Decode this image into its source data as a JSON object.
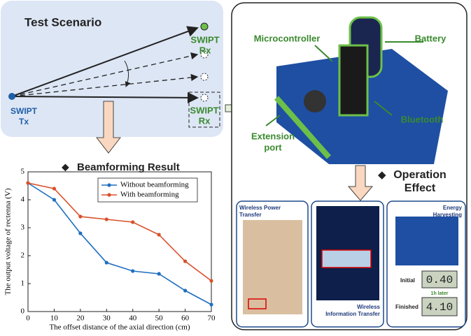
{
  "scenario": {
    "title": "Test Scenario",
    "rx1": [
      "SWIPT",
      "Rx"
    ],
    "rx2": [
      "SWIPT",
      "Rx"
    ],
    "tx": [
      "SWIPT",
      "Tx"
    ]
  },
  "hardware": {
    "labels": [
      "Microcontroller",
      "Battery",
      "Bluetooth"
    ],
    "extension": [
      "Extension",
      "port"
    ]
  },
  "operation": {
    "title": [
      "Operation",
      "Effect"
    ],
    "panels": {
      "power": [
        "Wireless Power",
        "Transfer"
      ],
      "info": [
        "Wireless",
        "Information Transfer"
      ],
      "energy": [
        "Energy",
        "Harvesting"
      ]
    },
    "initial": "Initial",
    "later": "1h later",
    "finished": "Finished",
    "reading1": "0.40",
    "reading2": "4.10"
  },
  "chart_data": {
    "type": "line",
    "title": "Beamforming Result",
    "xlabel": "The offset distance of the axial direction (cm)",
    "ylabel": "The output voltage of rectenna (V)",
    "x": [
      0,
      10,
      20,
      30,
      40,
      50,
      60,
      70
    ],
    "series": [
      {
        "name": "Without beamforming",
        "color": "#1f6fc0",
        "values": [
          4.6,
          4.0,
          2.8,
          1.75,
          1.45,
          1.35,
          0.75,
          0.25
        ]
      },
      {
        "name": "With beamforming",
        "color": "#d9502a",
        "values": [
          4.6,
          4.4,
          3.4,
          3.3,
          3.2,
          2.75,
          1.8,
          1.1
        ]
      }
    ],
    "xlim": [
      0,
      70
    ],
    "xticks": [
      0,
      10,
      20,
      30,
      40,
      50,
      60,
      70
    ],
    "ylim": [
      0,
      5
    ],
    "yticks": [
      0,
      1,
      2,
      3,
      4,
      5
    ],
    "legend": "upper right"
  }
}
